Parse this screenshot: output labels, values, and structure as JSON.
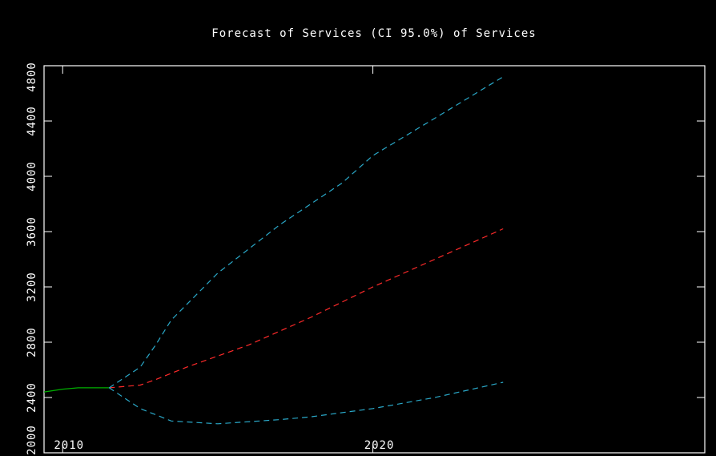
{
  "chart_data": {
    "type": "line",
    "title": "Forecast of Services (CI 95.0%) of Services",
    "xlim": [
      2009.4,
      2030.7
    ],
    "xticks": [
      2010,
      2020
    ],
    "ylim": [
      2000,
      4800
    ],
    "yticks": [
      2000,
      2400,
      2800,
      3200,
      3600,
      4000,
      4400,
      4800
    ],
    "series": [
      {
        "color": "#00b000",
        "dash": false,
        "x": [
          2009.4,
          2010,
          2010.5,
          2011,
          2011.5
        ],
        "values": [
          2440,
          2460,
          2470,
          2470,
          2470
        ]
      },
      {
        "color": "#ff2a2a",
        "dash": true,
        "x": [
          2011.5,
          2012.5,
          2013,
          2014,
          2016,
          2018,
          2020,
          2022,
          2024.2
        ],
        "values": [
          2470,
          2490,
          2530,
          2620,
          2780,
          2980,
          3200,
          3400,
          3620
        ]
      },
      {
        "color": "#2aa8c8",
        "dash": true,
        "x": [
          2011.5,
          2012.5,
          2013,
          2013.5,
          2015,
          2017,
          2019,
          2020,
          2022,
          2024.2
        ],
        "values": [
          2470,
          2620,
          2780,
          2960,
          3300,
          3650,
          3950,
          4150,
          4420,
          4720
        ]
      },
      {
        "color": "#2aa8c8",
        "dash": true,
        "x": [
          2011.5,
          2012.5,
          2013.5,
          2015,
          2017,
          2018,
          2020,
          2022,
          2024.2
        ],
        "values": [
          2470,
          2320,
          2230,
          2210,
          2240,
          2260,
          2320,
          2400,
          2510
        ]
      }
    ]
  }
}
